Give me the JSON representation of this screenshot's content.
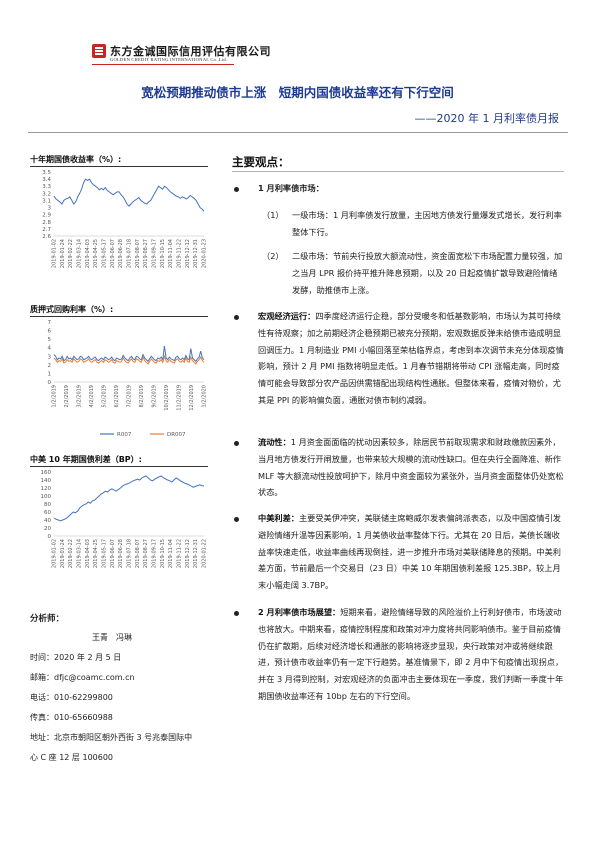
{
  "header": {
    "company_cn": "东方金诚国际信用评估有限公司",
    "company_en": "GOLDEN CREDIT RATING INTERNATIONAL Co.,Ltd.",
    "title": "宽松预期推动债市上涨　短期内国债收益率还有下行空间",
    "subtitle": "——2020 年 1 月利率债月报"
  },
  "charts": {
    "c1": {
      "title": "十年期国债收益率（%）:",
      "ylabels": [
        "3.5",
        "3.4",
        "3.3",
        "3.2",
        "3.1",
        "3",
        "2.9",
        "2.8",
        "2.7",
        "2.6"
      ],
      "xlabels": [
        "2019-01-02",
        "2019-01-24",
        "2019-02-22",
        "2019-03-14",
        "2019-04-03",
        "2019-04-25",
        "2019-05-17",
        "2019-06-07",
        "2019-06-28",
        "2019-07-18",
        "2019-08-07",
        "2019-08-27",
        "2019-09-17",
        "2019-10-15",
        "2019-11-04",
        "2019-11-22",
        "2019-12-12",
        "2019-12-31",
        "2020-01-23"
      ]
    },
    "c2": {
      "title": "质押式回购利率（%）:",
      "ylabels": [
        "7",
        "6",
        "5",
        "4",
        "3",
        "2",
        "1",
        "0"
      ],
      "xlabels": [
        "1/2/2019",
        "2/2/2019",
        "3/2/2019",
        "4/2/2019",
        "5/2/2019",
        "6/2/2019",
        "7/2/2019",
        "8/2/2019",
        "9/2/2019",
        "10/2/2019",
        "11/2/2019",
        "12/2/2019",
        "1/2/2020"
      ],
      "legend": [
        "R007",
        "DR007"
      ]
    },
    "c3": {
      "title": "中美 10 年期国债利差（BP）:",
      "ylabels": [
        "160",
        "140",
        "120",
        "100",
        "80",
        "60",
        "40",
        "20",
        "0"
      ],
      "xlabels": [
        "2019-01-02",
        "2019-01-24",
        "2019-02-22",
        "2019-03-14",
        "2019-04-03",
        "2019-04-25",
        "2019-05-17",
        "2019-06-07",
        "2019-06-28",
        "2019-07-18",
        "2019-08-07",
        "2019-08-27",
        "2019-09-17",
        "2019-10-15",
        "2019-11-04",
        "2019-11-22",
        "2019-12-12",
        "2019-12-31",
        "2020-01-22"
      ]
    }
  },
  "chart_data": [
    {
      "type": "line",
      "ylim": [
        2.6,
        3.5
      ],
      "series": [
        {
          "values": [
            3.16,
            3.12,
            3.1,
            3.08,
            3.05,
            3.1,
            3.12,
            3.13,
            3.15,
            3.1,
            3.05,
            3.08,
            3.15,
            3.2,
            3.26,
            3.35,
            3.4,
            3.38,
            3.4,
            3.35,
            3.32,
            3.3,
            3.28,
            3.25,
            3.27,
            3.25,
            3.28,
            3.24,
            3.22,
            3.2,
            3.18,
            3.2,
            3.22,
            3.22,
            3.18,
            3.15,
            3.1,
            3.05,
            3.02,
            3.05,
            3.08,
            3.1,
            3.12,
            3.14,
            3.1,
            3.08,
            3.06,
            3.05,
            3.08,
            3.1,
            3.15,
            3.2,
            3.25,
            3.3,
            3.28,
            3.26,
            3.3,
            3.28,
            3.25,
            3.22,
            3.2,
            3.18,
            3.16,
            3.15,
            3.13,
            3.15,
            3.14,
            3.12,
            3.14,
            3.17,
            3.15,
            3.13,
            3.1,
            3.05,
            3.0,
            2.98,
            2.95
          ]
        }
      ]
    },
    {
      "type": "line",
      "ylim": [
        0,
        7
      ],
      "series": [
        {
          "name": "R007",
          "values": [
            3.2,
            3.0,
            2.6,
            2.8,
            2.7,
            3.0,
            2.5,
            2.6,
            3.0,
            2.7,
            2.8,
            2.6,
            3.0,
            2.8,
            2.6,
            2.7,
            3.0,
            2.9,
            2.6,
            2.7,
            2.8,
            3.0,
            2.7,
            2.6,
            2.8,
            2.9,
            2.6,
            2.5,
            2.7,
            2.8,
            2.6,
            2.9,
            2.8,
            2.6,
            2.7,
            2.9,
            2.6,
            2.5,
            2.8,
            2.7,
            2.6,
            2.7,
            3.1,
            2.8,
            2.6,
            2.5,
            2.8,
            3.0,
            2.7,
            2.6,
            3.0,
            2.9,
            2.7,
            2.6,
            3.2,
            2.8,
            2.6,
            2.4,
            2.7,
            3.0,
            2.8,
            2.6,
            2.5,
            2.8,
            2.7,
            2.9,
            2.6,
            4.2,
            2.8,
            2.6,
            2.9,
            2.7,
            2.6,
            2.5,
            2.9,
            3.0,
            2.7,
            2.6,
            2.8,
            2.6,
            3.1,
            2.7,
            2.6,
            3.9,
            2.8,
            2.6,
            2.4,
            2.7,
            2.9,
            3.6,
            2.8,
            2.6
          ]
        },
        {
          "name": "DR007",
          "values": [
            2.8,
            2.6,
            2.3,
            2.5,
            2.4,
            2.7,
            2.2,
            2.3,
            2.6,
            2.4,
            2.5,
            2.3,
            2.7,
            2.5,
            2.3,
            2.4,
            2.7,
            2.6,
            2.3,
            2.4,
            2.5,
            2.7,
            2.4,
            2.3,
            2.5,
            2.6,
            2.3,
            2.2,
            2.4,
            2.5,
            2.3,
            2.6,
            2.5,
            2.3,
            2.4,
            2.6,
            2.3,
            2.2,
            2.5,
            2.4,
            2.3,
            2.4,
            2.8,
            2.5,
            2.3,
            2.2,
            2.5,
            2.7,
            2.4,
            2.3,
            2.7,
            2.6,
            2.4,
            2.3,
            2.9,
            2.5,
            2.3,
            2.1,
            2.4,
            2.7,
            2.5,
            2.3,
            2.2,
            2.5,
            2.4,
            2.6,
            2.3,
            3.0,
            2.5,
            2.3,
            2.6,
            2.4,
            2.3,
            2.2,
            2.6,
            2.7,
            2.4,
            2.3,
            2.5,
            2.3,
            2.8,
            2.4,
            2.3,
            2.9,
            2.5,
            2.3,
            2.1,
            2.4,
            2.6,
            2.9,
            2.5,
            2.3
          ]
        }
      ]
    },
    {
      "type": "line",
      "ylim": [
        0,
        160
      ],
      "series": [
        {
          "values": [
            45,
            42,
            40,
            38,
            40,
            42,
            45,
            50,
            55,
            60,
            58,
            62,
            70,
            75,
            78,
            80,
            85,
            82,
            88,
            90,
            95,
            100,
            105,
            108,
            112,
            110,
            115,
            118,
            115,
            112,
            116,
            120,
            125,
            128,
            130,
            132,
            135,
            138,
            140,
            142,
            140,
            145,
            148,
            150,
            145,
            140,
            138,
            142,
            145,
            148,
            150,
            146,
            143,
            140,
            138,
            135,
            140,
            145,
            142,
            138,
            135,
            132,
            130,
            128,
            125,
            122,
            124,
            126,
            128,
            126,
            125
          ]
        }
      ]
    }
  ],
  "right": {
    "section_head": "主要观点：",
    "b1": {
      "title": "1 月利率债市场：",
      "s1_num": "（1）",
      "s1": "一级市场：1 月利率债发行放量，主因地方债发行量爆发式增长，发行利率整体下行。",
      "s2_num": "（2）",
      "s2": "二级市场：节前央行投放大额流动性，资金面宽松下市场配置力量较强，加之当月 LPR 报价持平推升降息预期，以及 20 日起疫情扩散导致避险情绪发酵，助推债市上涨。"
    },
    "b2": {
      "label": "宏观经济运行：",
      "text": "四季度经济运行企稳，部分受暖冬和低基数影响，市场认为其可持续性有待观察；加之前期经济企稳预期已被充分预期，宏观数据反弹未给债市造成明显回调压力。1 月制造业 PMI 小幅回落至荣枯临界点，考虑到本次调节未充分体现疫情影响，预计 2 月 PMI 指数将明显走低。1 月春节错期将带动 CPI 涨幅走高，同时疫情可能会导致部分农产品因供需错配出现结构性通胀。但整体来看，疫情对物价，尤其是 PPI 的影响偏负面，通胀对债市制约减弱。"
    },
    "b3": {
      "label": "流动性：",
      "text": "1 月资金面面临的扰动因素较多，除居民节前取现需求和财政缴款因素外，当月地方债发行开闸放量，也带来较大规模的流动性缺口。但在央行全面降准、新作 MLF 等大额流动性投放呵护下，除月中资金面较为紧张外，当月资金面整体仍处宽松状态。"
    },
    "b4": {
      "label": "中美利差：",
      "text": "主要受美伊冲突，美联储主席鲍威尔发表偏鸽派表态，以及中国疫情引发避险情绪升温等因素影响，1 月美债收益率整体下行。尤其在 20 日后，美债长端收益率快速走低，收益率曲线再现倒挂，进一步推升市场对美联储降息的预期。中美利差方面，节前最后一个交易日（23 日）中美 10 年期国债利差报 125.3BP，较上月末小幅走阔 3.7BP。"
    },
    "b5": {
      "label": "2 月利率债市场展望：",
      "text": "短期来看，避险情绪导致的风险溢价上行利好债市，市场波动也将放大。中期来看，疫情控制程度和政策对冲力度将共同影响债市。鉴于目前疫情仍在扩散期，后续对经济增长和通胀的影响将逐步显现，央行政策对冲或将继续跟进，预计债市收益率仍有一定下行趋势。基准情景下，即 2 月中下旬疫情出现拐点，并在 3 月得到控制，对宏观经济的负面冲击主要体现在一季度，我们判断一季度十年期国债收益率还有 10bp 左右的下行空间。"
    }
  },
  "analyst": {
    "label": "分析师：",
    "names": "王青　冯琳",
    "time": "时间：2020 年 2 月 5 日",
    "email": "邮箱：dfjc@coamc.com.cn",
    "phone": "电话：010-62299800",
    "fax": "传真：010-65660988",
    "addr1": "地址：北京市朝阳区朝外西街 3 号兆泰国际中",
    "addr2": "心 C 座 12 层 100600"
  },
  "colors": {
    "accent": "#1f3a93",
    "brand_red": "#c8251f",
    "line_blue": "#4472c4",
    "line_orange": "#ed7d31"
  }
}
